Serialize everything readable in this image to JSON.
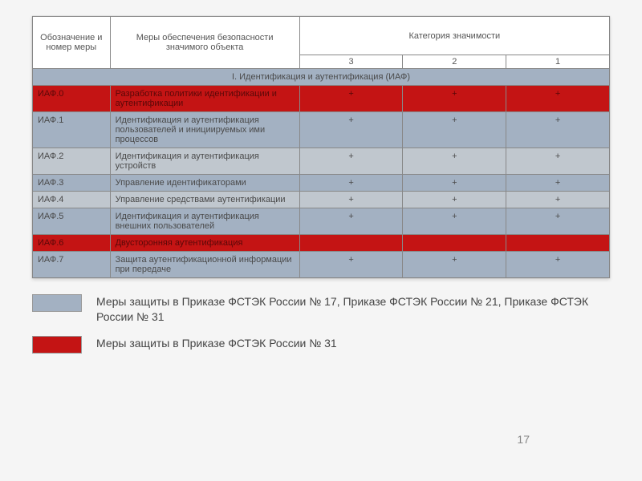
{
  "table": {
    "header": {
      "col1": "Обозначение и номер меры",
      "col2": "Меры обеспечения безопасности значимого объекта",
      "cat_title": "Категория значимости",
      "cats": [
        "3",
        "2",
        "1"
      ]
    },
    "section_title": "I. Идентификация и аутентификация (ИАФ)",
    "rows": [
      {
        "id": "ИАФ.0",
        "label": "Разработка политики идентификации и аутентификации",
        "marks": [
          "+",
          "+",
          "+"
        ],
        "style": "row-red"
      },
      {
        "id": "ИАФ.1",
        "label": "Идентификация и аутентификация пользователей и инициируемых ими процессов",
        "marks": [
          "+",
          "+",
          "+"
        ],
        "style": "row-blue"
      },
      {
        "id": "ИАФ.2",
        "label": "Идентификация и аутентификация устройств",
        "marks": [
          "+",
          "+",
          "+"
        ],
        "style": "row-gray"
      },
      {
        "id": "ИАФ.3",
        "label": "Управление идентификаторами",
        "marks": [
          "+",
          "+",
          "+"
        ],
        "style": "row-blue"
      },
      {
        "id": "ИАФ.4",
        "label": "Управление средствами аутентификации",
        "marks": [
          "+",
          "+",
          "+"
        ],
        "style": "row-gray"
      },
      {
        "id": "ИАФ.5",
        "label": "Идентификация и аутентификация внешних пользователей",
        "marks": [
          "+",
          "+",
          "+"
        ],
        "style": "row-blue"
      },
      {
        "id": "ИАФ.6",
        "label": "Двусторонняя аутентификация",
        "marks": [
          "",
          "",
          ""
        ],
        "style": "row-red"
      },
      {
        "id": "ИАФ.7",
        "label": "Защита аутентификационной информации при передаче",
        "marks": [
          "+",
          "+",
          "+"
        ],
        "style": "row-blue"
      }
    ],
    "colors": {
      "row_blue": "#a3b1c2",
      "row_gray": "#c0c7ce",
      "row_red": "#c41414",
      "border": "#888888",
      "text": "#4a4a4a"
    }
  },
  "legend": {
    "item1": {
      "swatch": "sw-blue",
      "text": "Меры защиты в Приказе ФСТЭК  России № 17, Приказе ФСТЭК  России № 21, Приказе  ФСТЭК  России № 31"
    },
    "item2": {
      "swatch": "sw-red",
      "text": "Меры защиты в Приказе ФСТЭК  России  № 31"
    }
  },
  "page_number": "17"
}
